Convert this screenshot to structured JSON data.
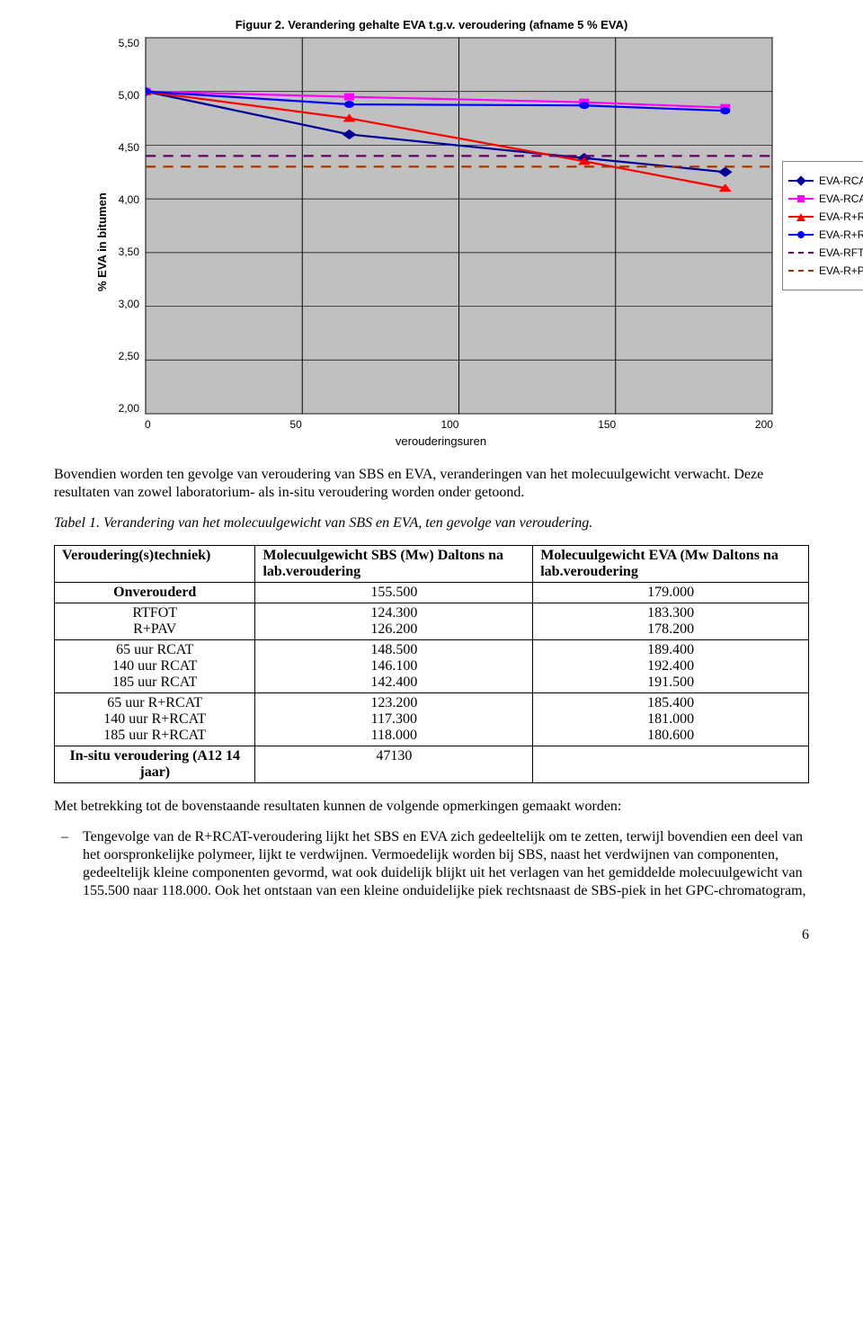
{
  "chart": {
    "title": "Figuur 2. Verandering gehalte EVA t.g.v. veroudering (afname 5 % EVA)",
    "ylabel": "% EVA in bitumen",
    "xlabel": "verouderingsuren",
    "ylim": [
      2.0,
      5.5
    ],
    "ytick_step": 0.5,
    "yticks": [
      "5,50",
      "5,00",
      "4,50",
      "4,00",
      "3,50",
      "3,00",
      "2,50",
      "2,00"
    ],
    "xlim": [
      0,
      200
    ],
    "xtick_step": 50,
    "xticks": [
      "0",
      "50",
      "100",
      "150",
      "200"
    ],
    "background_color": "#c0c0c0",
    "grid_color": "#000000",
    "series": [
      {
        "name": "EVA-RCAT(area)",
        "color": "#000099",
        "marker": "diamond",
        "dash": "solid",
        "points": [
          [
            0,
            5.0
          ],
          [
            65,
            4.6
          ],
          [
            140,
            4.38
          ],
          [
            185,
            4.25
          ]
        ]
      },
      {
        "name": "EVA-RCAT(height)",
        "color": "#ff00ff",
        "marker": "square",
        "dash": "solid",
        "points": [
          [
            0,
            5.0
          ],
          [
            65,
            4.95
          ],
          [
            140,
            4.9
          ],
          [
            185,
            4.85
          ]
        ]
      },
      {
        "name": "EVA-R+RCAT(area)",
        "color": "#ff0000",
        "marker": "triangle",
        "dash": "solid",
        "points": [
          [
            0,
            5.0
          ],
          [
            65,
            4.75
          ],
          [
            140,
            4.35
          ],
          [
            185,
            4.1
          ]
        ]
      },
      {
        "name": "EVA-R+RCAT(height)",
        "color": "#0000ff",
        "marker": "circle",
        "dash": "solid",
        "points": [
          [
            0,
            5.0
          ],
          [
            65,
            4.88
          ],
          [
            140,
            4.87
          ],
          [
            185,
            4.82
          ]
        ]
      },
      {
        "name": "EVA-RFTOT(area)",
        "color": "#660066",
        "marker": "none",
        "dash": "dash",
        "points": [
          [
            0,
            4.4
          ],
          [
            200,
            4.4
          ]
        ]
      },
      {
        "name": "EVA-R+PAV(area)",
        "color": "#993300",
        "marker": "none",
        "dash": "dash",
        "points": [
          [
            0,
            4.3
          ],
          [
            200,
            4.3
          ]
        ]
      }
    ]
  },
  "text": {
    "p1": "Bovendien worden ten gevolge van veroudering van SBS en EVA, veranderingen van het molecuulgewicht verwacht. Deze resultaten van zowel laboratorium- als in-situ veroudering worden onder getoond.",
    "table_caption": "Tabel 1. Verandering van het molecuulgewicht van SBS en EVA, ten gevolge van veroudering.",
    "p2": "Met betrekking tot de bovenstaande resultaten kunnen de volgende opmerkingen gemaakt worden:",
    "bullet1": "Tengevolge van de R+RCAT-veroudering lijkt het SBS en EVA zich gedeeltelijk om te zetten, terwijl bovendien een deel van het oorspronkelijke polymeer, lijkt te verdwijnen. Vermoedelijk worden bij SBS, naast het verdwijnen van componenten, gedeeltelijk kleine componenten gevormd, wat ook duidelijk blijkt uit het verlagen van het gemiddelde molecuulgewicht van 155.500 naar 118.000. Ook het ontstaan van een kleine onduidelijke piek rechtsnaast de SBS-piek in het GPC-chromatogram,",
    "pagenum": "6"
  },
  "table": {
    "headers": [
      "Veroudering(s)techniek)",
      "Molecuulgewicht SBS (Mw) Daltons  na lab.veroudering",
      "Molecuulgewicht EVA (Mw Daltons na lab.veroudering"
    ],
    "groups": [
      [
        [
          "Onverouderd",
          "155.500",
          "179.000"
        ]
      ],
      [
        [
          "RTFOT",
          "124.300",
          "183.300"
        ],
        [
          "R+PAV",
          "126.200",
          "178.200"
        ]
      ],
      [
        [
          "65 uur RCAT",
          "148.500",
          "189.400"
        ],
        [
          "140 uur RCAT",
          "146.100",
          "192.400"
        ],
        [
          "185 uur RCAT",
          "142.400",
          "191.500"
        ]
      ],
      [
        [
          "65 uur R+RCAT",
          "123.200",
          "185.400"
        ],
        [
          "140 uur R+RCAT",
          "117.300",
          "181.000"
        ],
        [
          "185 uur R+RCAT",
          "118.000",
          "180.600"
        ]
      ],
      [
        [
          "In-situ veroudering (A12 14 jaar)",
          "47130",
          ""
        ]
      ]
    ],
    "col1_bold_rows": [
      "Onverouderd",
      "In-situ veroudering (A12 14 jaar)"
    ]
  }
}
